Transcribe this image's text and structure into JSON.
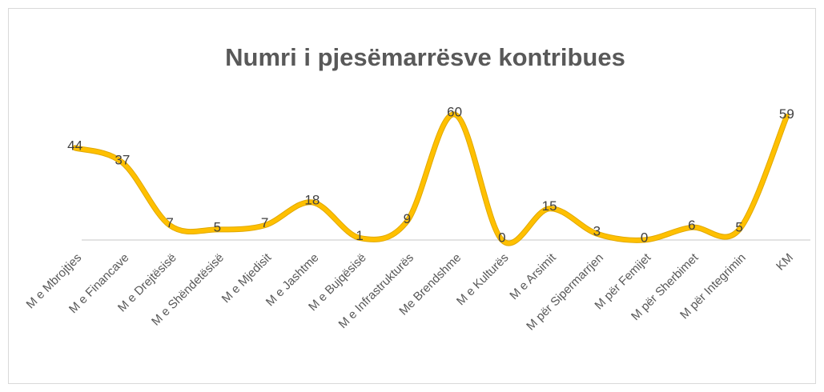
{
  "chart_data": {
    "type": "line",
    "title": "Numri i pjesëmarrësve kontribues",
    "categories": [
      "M e Mbrojtjes",
      "M e Financave",
      "M e Drejtësisë",
      "M e Shëndetësisë",
      "M e Mjedisit",
      "M e Jashtme",
      "M e Bujqësisë",
      "M e Infrastrukturës",
      "Me Brendshme",
      "M e Kulturës",
      "M e Arsimit",
      "M për  Sipermarrjen",
      "M për Femijet",
      "M për Sherbimet",
      "M për Integrimin",
      "KM"
    ],
    "series": [
      {
        "name": "Numri i pjesëmarrësve kontribues",
        "color": "#ffc000",
        "values": [
          44,
          37,
          7,
          5,
          7,
          18,
          1,
          9,
          60,
          0,
          15,
          3,
          0,
          6,
          5,
          59
        ]
      }
    ],
    "ylim": [
      0,
      60
    ],
    "yticks": []
  }
}
